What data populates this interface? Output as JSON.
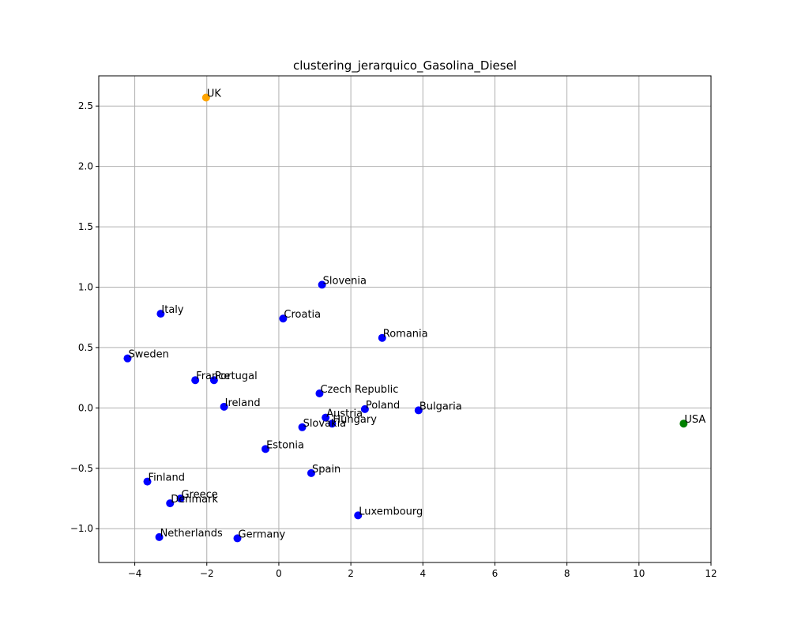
{
  "chart_data": {
    "type": "scatter",
    "title": "clustering_jerarquico_Gasolina_Diesel",
    "xlabel": "",
    "ylabel": "",
    "xlim": [
      -5,
      12
    ],
    "ylim": [
      -1.28,
      2.75
    ],
    "x_ticks": [
      -4,
      -2,
      0,
      2,
      4,
      6,
      8,
      10,
      12
    ],
    "x_tick_labels": [
      "−4",
      "−2",
      "0",
      "2",
      "4",
      "6",
      "8",
      "10",
      "12"
    ],
    "y_ticks": [
      -1.0,
      -0.5,
      0.0,
      0.5,
      1.0,
      1.5,
      2.0,
      2.5
    ],
    "y_tick_labels": [
      "−1.0",
      "−0.5",
      "0.0",
      "0.5",
      "1.0",
      "1.5",
      "2.0",
      "2.5"
    ],
    "grid": true,
    "legend": "none",
    "cluster_colors": {
      "1": "#0000ff",
      "2": "#ffa500",
      "3": "#008000"
    },
    "points": [
      {
        "label": "UK",
        "x": -2.02,
        "y": 2.57,
        "cluster": 2
      },
      {
        "label": "Slovenia",
        "x": 1.2,
        "y": 1.02,
        "cluster": 1
      },
      {
        "label": "Italy",
        "x": -3.28,
        "y": 0.78,
        "cluster": 1
      },
      {
        "label": "Croatia",
        "x": 0.12,
        "y": 0.74,
        "cluster": 1
      },
      {
        "label": "Romania",
        "x": 2.87,
        "y": 0.58,
        "cluster": 1
      },
      {
        "label": "Sweden",
        "x": -4.2,
        "y": 0.41,
        "cluster": 1
      },
      {
        "label": "France",
        "x": -2.32,
        "y": 0.23,
        "cluster": 1
      },
      {
        "label": "Portugal",
        "x": -1.8,
        "y": 0.23,
        "cluster": 1
      },
      {
        "label": "Czech Republic",
        "x": 1.13,
        "y": 0.12,
        "cluster": 1
      },
      {
        "label": "Ireland",
        "x": -1.52,
        "y": 0.01,
        "cluster": 1
      },
      {
        "label": "Poland",
        "x": 2.39,
        "y": -0.01,
        "cluster": 1
      },
      {
        "label": "Bulgaria",
        "x": 3.88,
        "y": -0.02,
        "cluster": 1
      },
      {
        "label": "Austria",
        "x": 1.3,
        "y": -0.08,
        "cluster": 1
      },
      {
        "label": "Hungary",
        "x": 1.48,
        "y": -0.13,
        "cluster": 1
      },
      {
        "label": "Slovakia",
        "x": 0.65,
        "y": -0.16,
        "cluster": 1
      },
      {
        "label": "USA",
        "x": 11.24,
        "y": -0.13,
        "cluster": 3
      },
      {
        "label": "Estonia",
        "x": -0.37,
        "y": -0.34,
        "cluster": 1
      },
      {
        "label": "Spain",
        "x": 0.9,
        "y": -0.54,
        "cluster": 1
      },
      {
        "label": "Finland",
        "x": -3.65,
        "y": -0.61,
        "cluster": 1
      },
      {
        "label": "Greece",
        "x": -2.73,
        "y": -0.75,
        "cluster": 1
      },
      {
        "label": "Denmark",
        "x": -3.02,
        "y": -0.79,
        "cluster": 1
      },
      {
        "label": "Luxembourg",
        "x": 2.2,
        "y": -0.89,
        "cluster": 1
      },
      {
        "label": "Netherlands",
        "x": -3.32,
        "y": -1.07,
        "cluster": 1
      },
      {
        "label": "Germany",
        "x": -1.15,
        "y": -1.08,
        "cluster": 1
      }
    ]
  }
}
